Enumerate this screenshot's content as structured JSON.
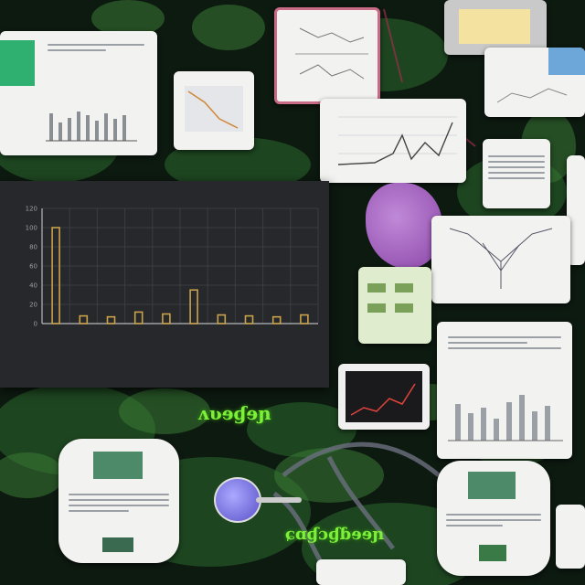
{
  "chart_data": {
    "type": "bar",
    "title": "",
    "xlabel": "",
    "ylabel": "",
    "categories": [
      "",
      "",
      "",
      "",
      "",
      "",
      "",
      "",
      "",
      ""
    ],
    "values": [
      100,
      8,
      7,
      12,
      10,
      35,
      9,
      8,
      7,
      9
    ],
    "ylim": [
      0,
      120
    ],
    "yticks": [
      0,
      20,
      40,
      60,
      80,
      100,
      120
    ],
    "grid": true,
    "colors": {
      "bar": "#c9a24a",
      "background": "#26282b"
    }
  }
}
